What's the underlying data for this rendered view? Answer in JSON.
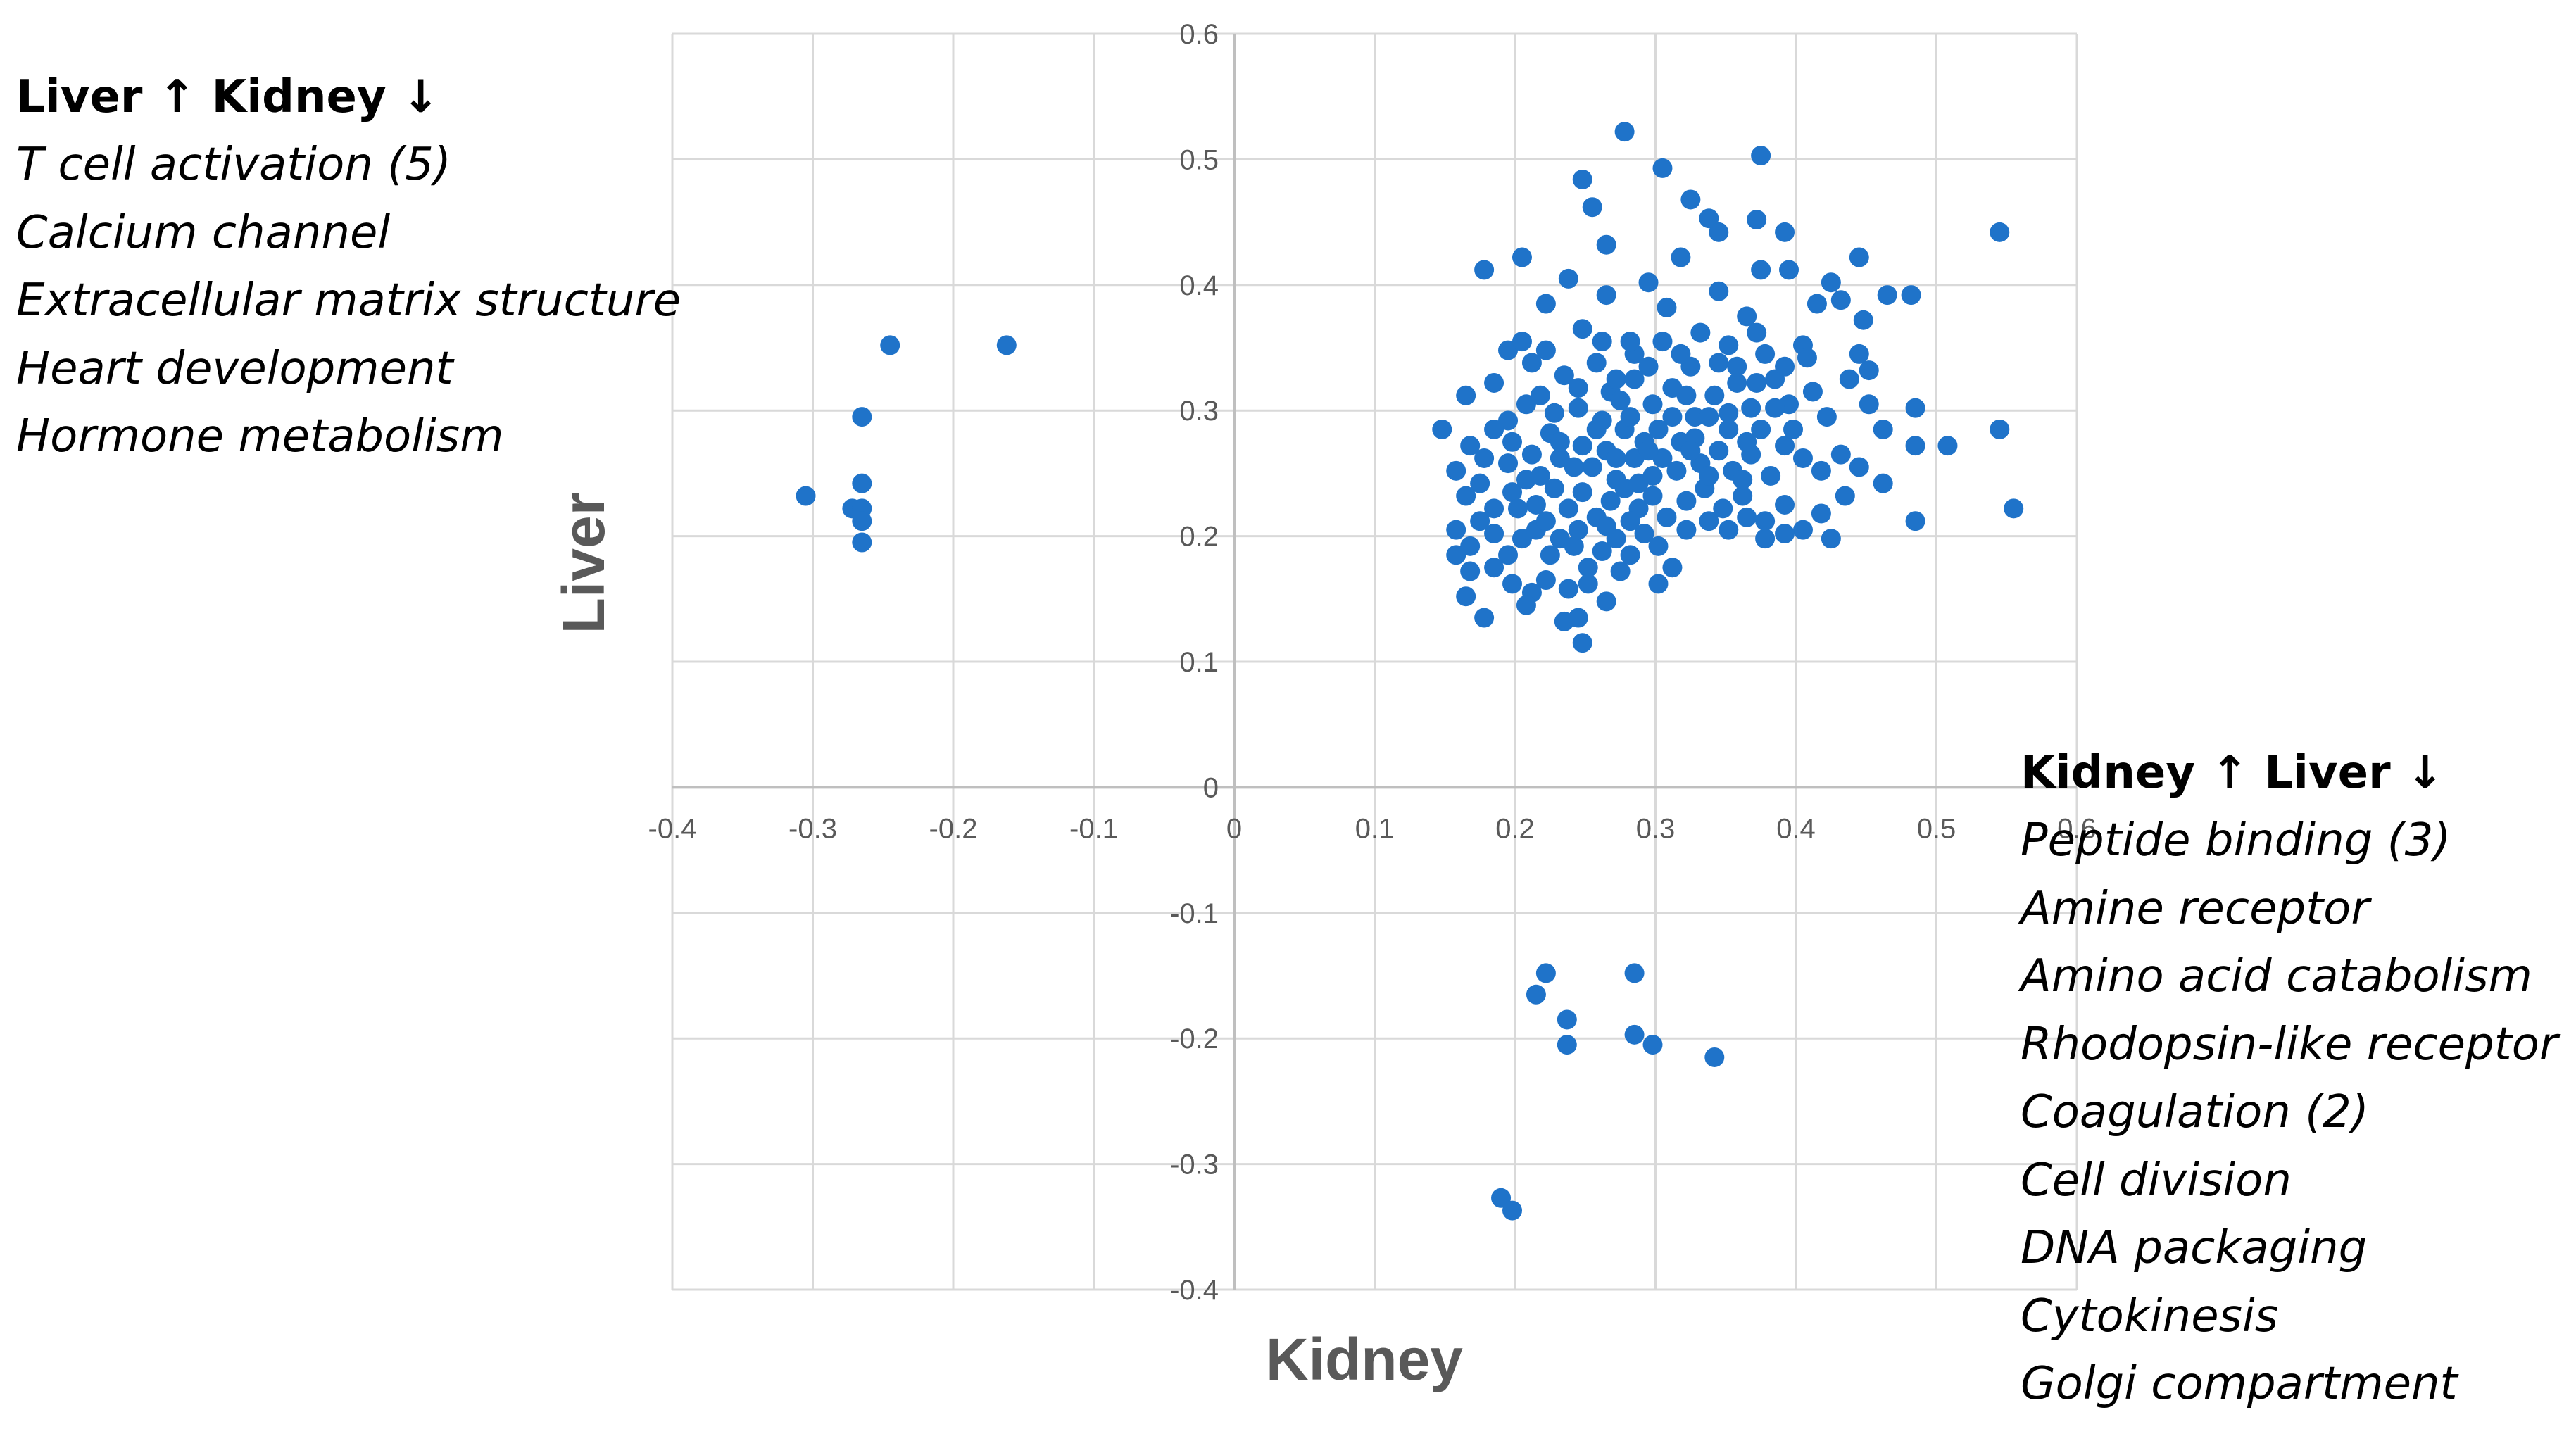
{
  "chart_data": {
    "type": "scatter",
    "xlabel": "Kidney",
    "ylabel": "Liver",
    "xlim": [
      -0.4,
      0.6
    ],
    "ylim": [
      -0.4,
      0.6
    ],
    "x_ticks": [
      "-0.4",
      "-0.3",
      "-0.2",
      "-0.1",
      "0",
      "0.1",
      "0.2",
      "0.3",
      "0.4",
      "0.5",
      "0.6"
    ],
    "y_ticks": [
      "0.6",
      "0.5",
      "0.4",
      "0.3",
      "0.2",
      "0.1",
      "0",
      "-0.1",
      "-0.2",
      "-0.3",
      "-0.4"
    ],
    "grid": true,
    "marker_color": "#1F73C9",
    "series": [
      {
        "points": [
          [
            -0.305,
            0.232
          ],
          [
            -0.245,
            0.352
          ],
          [
            -0.162,
            0.352
          ],
          [
            -0.265,
            0.295
          ],
          [
            -0.265,
            0.242
          ],
          [
            -0.272,
            0.222
          ],
          [
            -0.265,
            0.222
          ],
          [
            -0.265,
            0.212
          ],
          [
            -0.265,
            0.195
          ],
          [
            0.222,
            -0.148
          ],
          [
            0.285,
            -0.148
          ],
          [
            0.215,
            -0.165
          ],
          [
            0.237,
            -0.185
          ],
          [
            0.237,
            -0.205
          ],
          [
            0.285,
            -0.197
          ],
          [
            0.298,
            -0.205
          ],
          [
            0.342,
            -0.215
          ],
          [
            0.19,
            -0.327
          ],
          [
            0.198,
            -0.337
          ],
          [
            0.278,
            0.522
          ],
          [
            0.375,
            0.503
          ],
          [
            0.305,
            0.493
          ],
          [
            0.248,
            0.484
          ],
          [
            0.255,
            0.462
          ],
          [
            0.325,
            0.468
          ],
          [
            0.338,
            0.453
          ],
          [
            0.372,
            0.452
          ],
          [
            0.392,
            0.442
          ],
          [
            0.545,
            0.442
          ],
          [
            0.265,
            0.432
          ],
          [
            0.345,
            0.442
          ],
          [
            0.205,
            0.422
          ],
          [
            0.178,
            0.412
          ],
          [
            0.318,
            0.422
          ],
          [
            0.445,
            0.422
          ],
          [
            0.375,
            0.412
          ],
          [
            0.395,
            0.412
          ],
          [
            0.425,
            0.402
          ],
          [
            0.465,
            0.392
          ],
          [
            0.482,
            0.392
          ],
          [
            0.222,
            0.385
          ],
          [
            0.238,
            0.405
          ],
          [
            0.265,
            0.392
          ],
          [
            0.295,
            0.402
          ],
          [
            0.308,
            0.382
          ],
          [
            0.345,
            0.395
          ],
          [
            0.365,
            0.375
          ],
          [
            0.415,
            0.385
          ],
          [
            0.432,
            0.388
          ],
          [
            0.448,
            0.372
          ],
          [
            0.195,
            0.348
          ],
          [
            0.205,
            0.355
          ],
          [
            0.212,
            0.338
          ],
          [
            0.248,
            0.365
          ],
          [
            0.262,
            0.355
          ],
          [
            0.285,
            0.345
          ],
          [
            0.325,
            0.335
          ],
          [
            0.352,
            0.352
          ],
          [
            0.372,
            0.362
          ],
          [
            0.405,
            0.352
          ],
          [
            0.445,
            0.345
          ],
          [
            0.452,
            0.332
          ],
          [
            0.165,
            0.312
          ],
          [
            0.185,
            0.322
          ],
          [
            0.195,
            0.292
          ],
          [
            0.208,
            0.305
          ],
          [
            0.218,
            0.312
          ],
          [
            0.228,
            0.298
          ],
          [
            0.245,
            0.302
          ],
          [
            0.268,
            0.315
          ],
          [
            0.278,
            0.285
          ],
          [
            0.298,
            0.305
          ],
          [
            0.312,
            0.318
          ],
          [
            0.328,
            0.295
          ],
          [
            0.342,
            0.312
          ],
          [
            0.358,
            0.322
          ],
          [
            0.368,
            0.302
          ],
          [
            0.385,
            0.325
          ],
          [
            0.395,
            0.305
          ],
          [
            0.412,
            0.315
          ],
          [
            0.422,
            0.295
          ],
          [
            0.438,
            0.325
          ],
          [
            0.452,
            0.305
          ],
          [
            0.485,
            0.302
          ],
          [
            0.148,
            0.285
          ],
          [
            0.168,
            0.272
          ],
          [
            0.178,
            0.262
          ],
          [
            0.185,
            0.285
          ],
          [
            0.198,
            0.275
          ],
          [
            0.212,
            0.265
          ],
          [
            0.225,
            0.282
          ],
          [
            0.232,
            0.262
          ],
          [
            0.248,
            0.272
          ],
          [
            0.255,
            0.255
          ],
          [
            0.265,
            0.268
          ],
          [
            0.272,
            0.245
          ],
          [
            0.285,
            0.262
          ],
          [
            0.292,
            0.275
          ],
          [
            0.305,
            0.262
          ],
          [
            0.318,
            0.275
          ],
          [
            0.332,
            0.258
          ],
          [
            0.345,
            0.268
          ],
          [
            0.355,
            0.252
          ],
          [
            0.368,
            0.265
          ],
          [
            0.382,
            0.248
          ],
          [
            0.392,
            0.272
          ],
          [
            0.405,
            0.262
          ],
          [
            0.418,
            0.252
          ],
          [
            0.432,
            0.265
          ],
          [
            0.445,
            0.255
          ],
          [
            0.462,
            0.285
          ],
          [
            0.485,
            0.272
          ],
          [
            0.508,
            0.272
          ],
          [
            0.545,
            0.285
          ],
          [
            0.158,
            0.252
          ],
          [
            0.165,
            0.232
          ],
          [
            0.175,
            0.242
          ],
          [
            0.185,
            0.222
          ],
          [
            0.198,
            0.235
          ],
          [
            0.208,
            0.245
          ],
          [
            0.215,
            0.225
          ],
          [
            0.228,
            0.238
          ],
          [
            0.238,
            0.222
          ],
          [
            0.248,
            0.235
          ],
          [
            0.258,
            0.215
          ],
          [
            0.268,
            0.228
          ],
          [
            0.278,
            0.238
          ],
          [
            0.288,
            0.222
          ],
          [
            0.298,
            0.232
          ],
          [
            0.308,
            0.215
          ],
          [
            0.322,
            0.228
          ],
          [
            0.335,
            0.238
          ],
          [
            0.348,
            0.222
          ],
          [
            0.362,
            0.232
          ],
          [
            0.378,
            0.212
          ],
          [
            0.392,
            0.225
          ],
          [
            0.405,
            0.205
          ],
          [
            0.418,
            0.218
          ],
          [
            0.435,
            0.232
          ],
          [
            0.462,
            0.242
          ],
          [
            0.485,
            0.212
          ],
          [
            0.555,
            0.222
          ],
          [
            0.158,
            0.205
          ],
          [
            0.168,
            0.192
          ],
          [
            0.175,
            0.212
          ],
          [
            0.185,
            0.202
          ],
          [
            0.195,
            0.185
          ],
          [
            0.205,
            0.198
          ],
          [
            0.215,
            0.205
          ],
          [
            0.225,
            0.185
          ],
          [
            0.232,
            0.198
          ],
          [
            0.242,
            0.192
          ],
          [
            0.252,
            0.175
          ],
          [
            0.262,
            0.188
          ],
          [
            0.272,
            0.198
          ],
          [
            0.282,
            0.185
          ],
          [
            0.292,
            0.202
          ],
          [
            0.302,
            0.192
          ],
          [
            0.312,
            0.175
          ],
          [
            0.378,
            0.198
          ],
          [
            0.392,
            0.202
          ],
          [
            0.425,
            0.198
          ],
          [
            0.158,
            0.185
          ],
          [
            0.168,
            0.172
          ],
          [
            0.185,
            0.175
          ],
          [
            0.198,
            0.162
          ],
          [
            0.212,
            0.155
          ],
          [
            0.222,
            0.165
          ],
          [
            0.238,
            0.158
          ],
          [
            0.252,
            0.162
          ],
          [
            0.265,
            0.148
          ],
          [
            0.275,
            0.172
          ],
          [
            0.302,
            0.162
          ],
          [
            0.165,
            0.152
          ],
          [
            0.178,
            0.135
          ],
          [
            0.208,
            0.145
          ],
          [
            0.235,
            0.132
          ],
          [
            0.245,
            0.135
          ],
          [
            0.248,
            0.115
          ],
          [
            0.195,
            0.258
          ],
          [
            0.218,
            0.248
          ],
          [
            0.242,
            0.255
          ],
          [
            0.262,
            0.292
          ],
          [
            0.275,
            0.308
          ],
          [
            0.288,
            0.242
          ],
          [
            0.302,
            0.285
          ],
          [
            0.315,
            0.252
          ],
          [
            0.328,
            0.278
          ],
          [
            0.338,
            0.295
          ],
          [
            0.352,
            0.285
          ],
          [
            0.362,
            0.245
          ],
          [
            0.375,
            0.285
          ],
          [
            0.385,
            0.302
          ],
          [
            0.398,
            0.285
          ],
          [
            0.222,
            0.348
          ],
          [
            0.235,
            0.328
          ],
          [
            0.258,
            0.338
          ],
          [
            0.272,
            0.325
          ],
          [
            0.282,
            0.355
          ],
          [
            0.295,
            0.335
          ],
          [
            0.305,
            0.355
          ],
          [
            0.318,
            0.345
          ],
          [
            0.332,
            0.362
          ],
          [
            0.345,
            0.338
          ],
          [
            0.378,
            0.345
          ],
          [
            0.392,
            0.335
          ],
          [
            0.408,
            0.342
          ],
          [
            0.202,
            0.222
          ],
          [
            0.222,
            0.212
          ],
          [
            0.245,
            0.205
          ],
          [
            0.265,
            0.208
          ],
          [
            0.282,
            0.212
          ],
          [
            0.298,
            0.248
          ],
          [
            0.322,
            0.205
          ],
          [
            0.338,
            0.212
          ],
          [
            0.352,
            0.205
          ],
          [
            0.365,
            0.215
          ],
          [
            0.232,
            0.275
          ],
          [
            0.258,
            0.285
          ],
          [
            0.272,
            0.262
          ],
          [
            0.282,
            0.295
          ],
          [
            0.295,
            0.268
          ],
          [
            0.312,
            0.295
          ],
          [
            0.325,
            0.268
          ],
          [
            0.338,
            0.248
          ],
          [
            0.352,
            0.298
          ],
          [
            0.365,
            0.275
          ],
          [
            0.245,
            0.318
          ],
          [
            0.285,
            0.325
          ],
          [
            0.322,
            0.312
          ],
          [
            0.358,
            0.335
          ],
          [
            0.372,
            0.322
          ]
        ]
      }
    ]
  },
  "annotations": {
    "left": {
      "heading": "Liver ↑   Kidney ↓",
      "items": [
        "T cell activation (5)",
        "Calcium channel",
        "Extracellular matrix structure",
        "Heart development",
        "Hormone metabolism"
      ]
    },
    "right": {
      "heading": "Kidney ↑ Liver ↓",
      "items": [
        "Peptide binding (3)",
        "Amine receptor",
        "Amino acid catabolism",
        "Rhodopsin-like receptor",
        "Coagulation (2)",
        "Cell division",
        "DNA packaging",
        "Cytokinesis",
        "Golgi compartment"
      ]
    }
  }
}
